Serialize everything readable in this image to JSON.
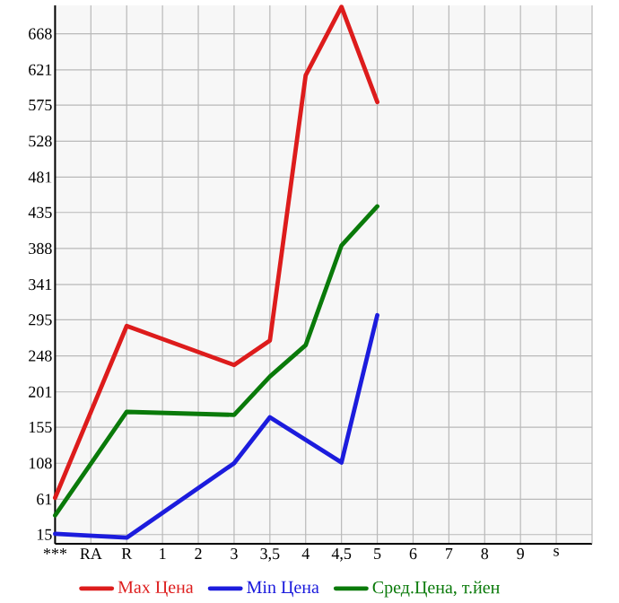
{
  "chart_data": {
    "type": "line",
    "categories": [
      "***",
      "RA",
      "R",
      "1",
      "2",
      "3",
      "3,5",
      "4",
      "4,5",
      "5",
      "6",
      "7",
      "8",
      "9",
      "s"
    ],
    "series": [
      {
        "name": "Max Цена",
        "color": "#dd1c1c",
        "values": [
          63,
          null,
          287,
          null,
          null,
          236,
          268,
          614,
          703,
          579,
          null,
          null,
          null,
          null,
          null
        ]
      },
      {
        "name": "Min Цена",
        "color": "#1c1cdd",
        "values": [
          16,
          null,
          11,
          null,
          null,
          108,
          168,
          null,
          109,
          301,
          null,
          null,
          null,
          null,
          null
        ]
      },
      {
        "name": "Сред.Цена, т.йен",
        "color": "#0a7a0a",
        "values": [
          40,
          null,
          175,
          null,
          null,
          171,
          221,
          262,
          392,
          443,
          null,
          null,
          null,
          null,
          null
        ]
      }
    ],
    "ylim": [
      3,
      705
    ],
    "yticks": [
      15,
      61,
      108,
      155,
      201,
      248,
      295,
      341,
      388,
      435,
      481,
      528,
      575,
      621,
      668
    ],
    "grid": true,
    "legend": "bottom",
    "marker": "none",
    "line_style": "solid"
  }
}
